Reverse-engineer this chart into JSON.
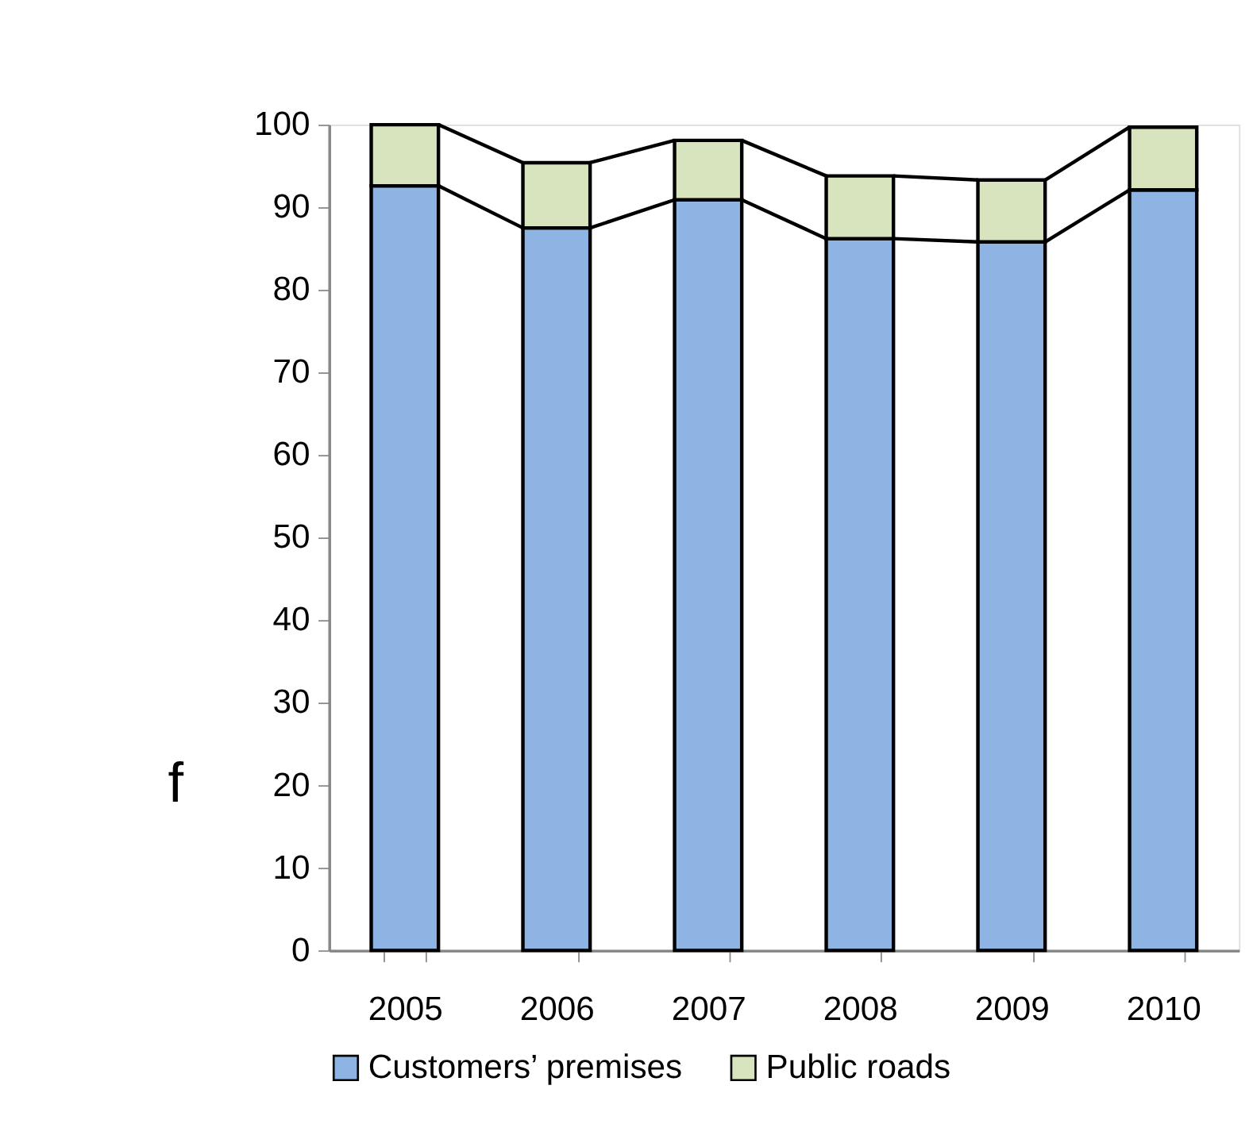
{
  "chart_data": {
    "type": "bar",
    "stacked": true,
    "categories": [
      "2005",
      "2006",
      "2007",
      "2008",
      "2009",
      "2010"
    ],
    "series": [
      {
        "name": "Customers’ premises",
        "color": "#8eb4e3",
        "values": [
          92.6,
          87.5,
          90.9,
          86.2,
          85.8,
          92.1
        ]
      },
      {
        "name": "Public roads",
        "color": "#d7e4bd",
        "values": [
          7.4,
          7.9,
          7.2,
          7.6,
          7.5,
          7.6
        ]
      }
    ],
    "ylim": [
      0,
      100
    ],
    "yticks": [
      0,
      10,
      20,
      30,
      40,
      50,
      60,
      70,
      80,
      90,
      100
    ],
    "grid": false,
    "legend": "bottom",
    "annotations": [
      "f"
    ]
  }
}
